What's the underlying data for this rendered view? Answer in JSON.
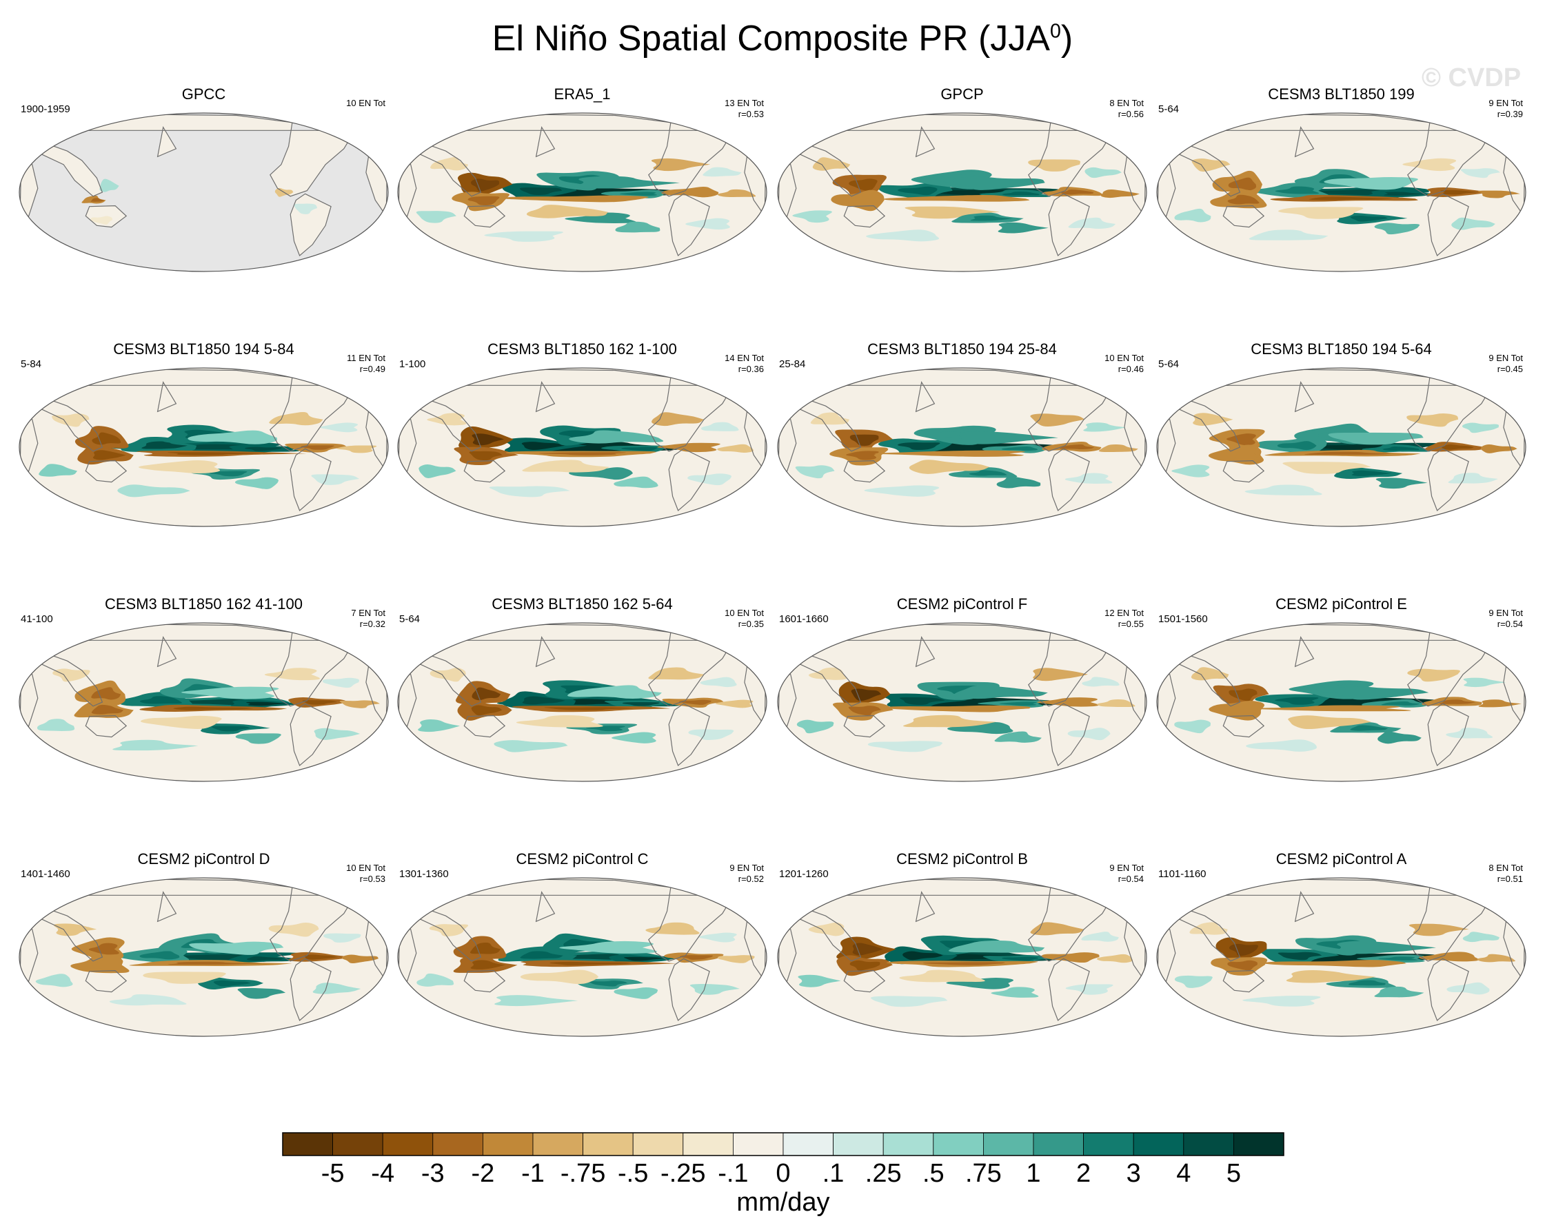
{
  "title": {
    "main": "El Niño Spatial Composite PR (JJA",
    "superscript": "0",
    "close": ")"
  },
  "watermark": "© CVDP",
  "panels": [
    {
      "title": "GPCC",
      "period": "1900-1959",
      "count": "10 EN Tot",
      "corr": "",
      "pattern": "obs_land"
    },
    {
      "title": "ERA5_1",
      "period": "",
      "count": "13 EN Tot",
      "corr": "r=0.53",
      "pattern": "enso"
    },
    {
      "title": "GPCP",
      "period": "",
      "count": "8 EN Tot",
      "corr": "r=0.56",
      "pattern": "enso"
    },
    {
      "title": "CESM3 BLT1850 199",
      "period": "5-64",
      "count": "9 EN Tot",
      "corr": "r=0.39",
      "pattern": "enso"
    },
    {
      "title": "CESM3 BLT1850 194 5-84",
      "period": "5-84",
      "count": "11 EN Tot",
      "corr": "r=0.49",
      "pattern": "enso"
    },
    {
      "title": "CESM3 BLT1850 162 1-100",
      "period": "1-100",
      "count": "14 EN Tot",
      "corr": "r=0.36",
      "pattern": "enso"
    },
    {
      "title": "CESM3 BLT1850 194 25-84",
      "period": "25-84",
      "count": "10 EN Tot",
      "corr": "r=0.46",
      "pattern": "enso"
    },
    {
      "title": "CESM3 BLT1850 194 5-64",
      "period": "5-64",
      "count": "9 EN Tot",
      "corr": "r=0.45",
      "pattern": "enso"
    },
    {
      "title": "CESM3 BLT1850 162 41-100",
      "period": "41-100",
      "count": "7 EN Tot",
      "corr": "r=0.32",
      "pattern": "enso"
    },
    {
      "title": "CESM3 BLT1850 162 5-64",
      "period": "5-64",
      "count": "10 EN Tot",
      "corr": "r=0.35",
      "pattern": "enso"
    },
    {
      "title": "CESM2 piControl F",
      "period": "1601-1660",
      "count": "12 EN Tot",
      "corr": "r=0.55",
      "pattern": "enso"
    },
    {
      "title": "CESM2 piControl E",
      "period": "1501-1560",
      "count": "9 EN Tot",
      "corr": "r=0.54",
      "pattern": "enso"
    },
    {
      "title": "CESM2 piControl D",
      "period": "1401-1460",
      "count": "10 EN Tot",
      "corr": "r=0.53",
      "pattern": "enso"
    },
    {
      "title": "CESM2 piControl C",
      "period": "1301-1360",
      "count": "9 EN Tot",
      "corr": "r=0.52",
      "pattern": "enso"
    },
    {
      "title": "CESM2 piControl B",
      "period": "1201-1260",
      "count": "9 EN Tot",
      "corr": "r=0.54",
      "pattern": "enso"
    },
    {
      "title": "CESM2 piControl A",
      "period": "1101-1160",
      "count": "8 EN Tot",
      "corr": "r=0.51",
      "pattern": "enso"
    }
  ],
  "chart_data": {
    "type": "heatmap",
    "title": "El Niño Spatial Composite PR (JJA0)",
    "projection": "Robinson, Pacific-centered",
    "colorbar": {
      "label": "mm/day",
      "levels": [
        "-5",
        "-4",
        "-3",
        "-2",
        "-1",
        "-.75",
        "-.5",
        "-.25",
        "-.1",
        "0",
        ".1",
        ".25",
        ".5",
        ".75",
        "1",
        "2",
        "3",
        "4",
        "5"
      ],
      "colors": [
        "#5b3406",
        "#754209",
        "#8f520b",
        "#a8671f",
        "#c18838",
        "#d6a85f",
        "#e5c485",
        "#eed9ac",
        "#f3e9cf",
        "#f5f0e6",
        "#e8f1ef",
        "#cde9e3",
        "#a9dfd4",
        "#81cfc0",
        "#5cb7a7",
        "#35998a",
        "#137c6f",
        "#03645a",
        "#024c43",
        "#01342c"
      ]
    },
    "missing_color": "#e6e6e6"
  }
}
